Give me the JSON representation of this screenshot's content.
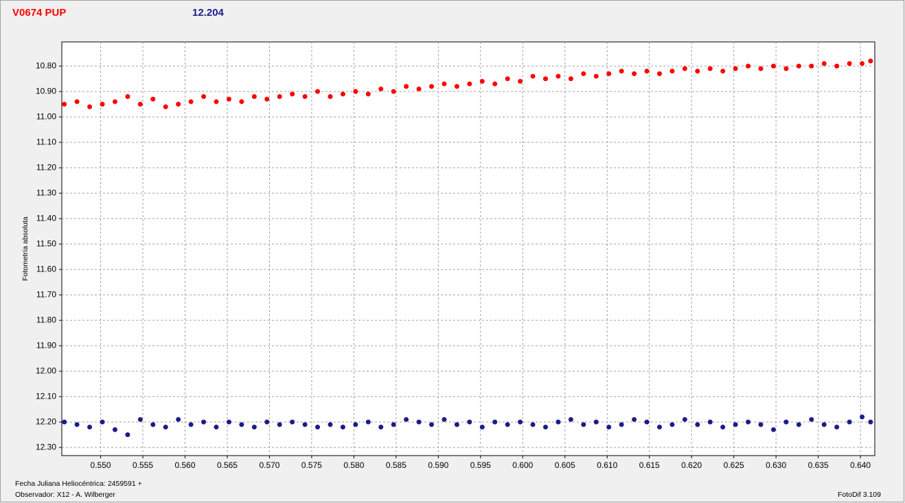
{
  "chart_data": {
    "type": "scatter",
    "title": "V0674 PUP",
    "subtitle": "12.204",
    "ylabel": "Fotometría absoluta",
    "xlabel": "Fecha Juliana Heliocéntrica: 2459591 +",
    "observer": "Observador: X12 - A. Wilberger",
    "software": "FotoDif 3.109",
    "xlim": [
      0.5454,
      0.6417
    ],
    "ylim": [
      12.332,
      10.705
    ],
    "grid": true,
    "xticks": [
      {
        "value": 0.55,
        "label": "0.550"
      },
      0.555,
      {
        "value": 0.56,
        "label": "0.560"
      },
      0.565,
      {
        "value": 0.57,
        "label": "0.570"
      },
      0.575,
      {
        "value": 0.58,
        "label": "0.580"
      },
      0.585,
      {
        "value": 0.59,
        "label": "0.590"
      },
      0.595,
      {
        "value": 0.6,
        "label": "0.600"
      },
      0.605,
      {
        "value": 0.61,
        "label": "0.610"
      },
      0.615,
      {
        "value": 0.62,
        "label": "0.620"
      },
      0.625,
      {
        "value": 0.63,
        "label": "0.630"
      },
      0.635,
      {
        "value": 0.64,
        "label": "0.640"
      }
    ],
    "yticks": [
      {
        "value": 10.8,
        "label": "10.80"
      },
      {
        "value": 10.9,
        "label": "10.90"
      },
      {
        "value": 11.0,
        "label": "11.00"
      },
      {
        "value": 11.1,
        "label": "11.10"
      },
      {
        "value": 11.2,
        "label": "11.20"
      },
      {
        "value": 11.3,
        "label": "11.30"
      },
      {
        "value": 11.4,
        "label": "11.40"
      },
      {
        "value": 11.5,
        "label": "11.50"
      },
      {
        "value": 11.6,
        "label": "11.60"
      },
      {
        "value": 11.7,
        "label": "11.70"
      },
      {
        "value": 11.8,
        "label": "11.80"
      },
      {
        "value": 11.9,
        "label": "11.90"
      },
      {
        "value": 12.0,
        "label": "12.00"
      },
      {
        "value": 12.1,
        "label": "12.10"
      },
      {
        "value": 12.2,
        "label": "12.20"
      },
      {
        "value": 12.3,
        "label": "12.30"
      }
    ],
    "x": [
      0.5457,
      0.5472,
      0.5487,
      0.5502,
      0.5517,
      0.5532,
      0.5547,
      0.5562,
      0.5577,
      0.5592,
      0.5607,
      0.5622,
      0.5637,
      0.5652,
      0.5667,
      0.5682,
      0.5697,
      0.5712,
      0.5727,
      0.5742,
      0.5757,
      0.5772,
      0.5787,
      0.5802,
      0.5817,
      0.5832,
      0.5847,
      0.5862,
      0.5877,
      0.5892,
      0.5907,
      0.5922,
      0.5937,
      0.5952,
      0.5967,
      0.5982,
      0.5997,
      0.6012,
      0.6027,
      0.6042,
      0.6057,
      0.6072,
      0.6087,
      0.6102,
      0.6117,
      0.6132,
      0.6147,
      0.6162,
      0.6177,
      0.6192,
      0.6207,
      0.6222,
      0.6237,
      0.6252,
      0.6267,
      0.6282,
      0.6297,
      0.6312,
      0.6327,
      0.6342,
      0.6357,
      0.6372,
      0.6387,
      0.6402,
      0.6412
    ],
    "series": [
      {
        "color": "#ff0000",
        "values": [
          10.95,
          10.94,
          10.96,
          10.95,
          10.94,
          10.92,
          10.95,
          10.93,
          10.96,
          10.95,
          10.94,
          10.92,
          10.94,
          10.93,
          10.94,
          10.92,
          10.93,
          10.92,
          10.91,
          10.92,
          10.9,
          10.92,
          10.91,
          10.9,
          10.91,
          10.89,
          10.9,
          10.88,
          10.89,
          10.88,
          10.87,
          10.88,
          10.87,
          10.86,
          10.87,
          10.85,
          10.86,
          10.84,
          10.85,
          10.84,
          10.85,
          10.83,
          10.84,
          10.83,
          10.82,
          10.83,
          10.82,
          10.83,
          10.82,
          10.81,
          10.82,
          10.81,
          10.82,
          10.81,
          10.8,
          10.81,
          10.8,
          10.81,
          10.8,
          10.8,
          10.79,
          10.8,
          10.79,
          10.79,
          10.78
        ]
      },
      {
        "color": "#1c1c8c",
        "values": [
          12.2,
          12.21,
          12.22,
          12.2,
          12.23,
          12.25,
          12.19,
          12.21,
          12.22,
          12.19,
          12.21,
          12.2,
          12.22,
          12.2,
          12.21,
          12.22,
          12.2,
          12.21,
          12.2,
          12.21,
          12.22,
          12.21,
          12.22,
          12.21,
          12.2,
          12.22,
          12.21,
          12.19,
          12.2,
          12.21,
          12.19,
          12.21,
          12.2,
          12.22,
          12.2,
          12.21,
          12.2,
          12.21,
          12.22,
          12.2,
          12.19,
          12.21,
          12.2,
          12.22,
          12.21,
          12.19,
          12.2,
          12.22,
          12.21,
          12.19,
          12.21,
          12.2,
          12.22,
          12.21,
          12.2,
          12.21,
          12.23,
          12.2,
          12.21,
          12.19,
          12.21,
          12.22,
          12.2,
          12.18,
          12.2
        ]
      }
    ]
  }
}
